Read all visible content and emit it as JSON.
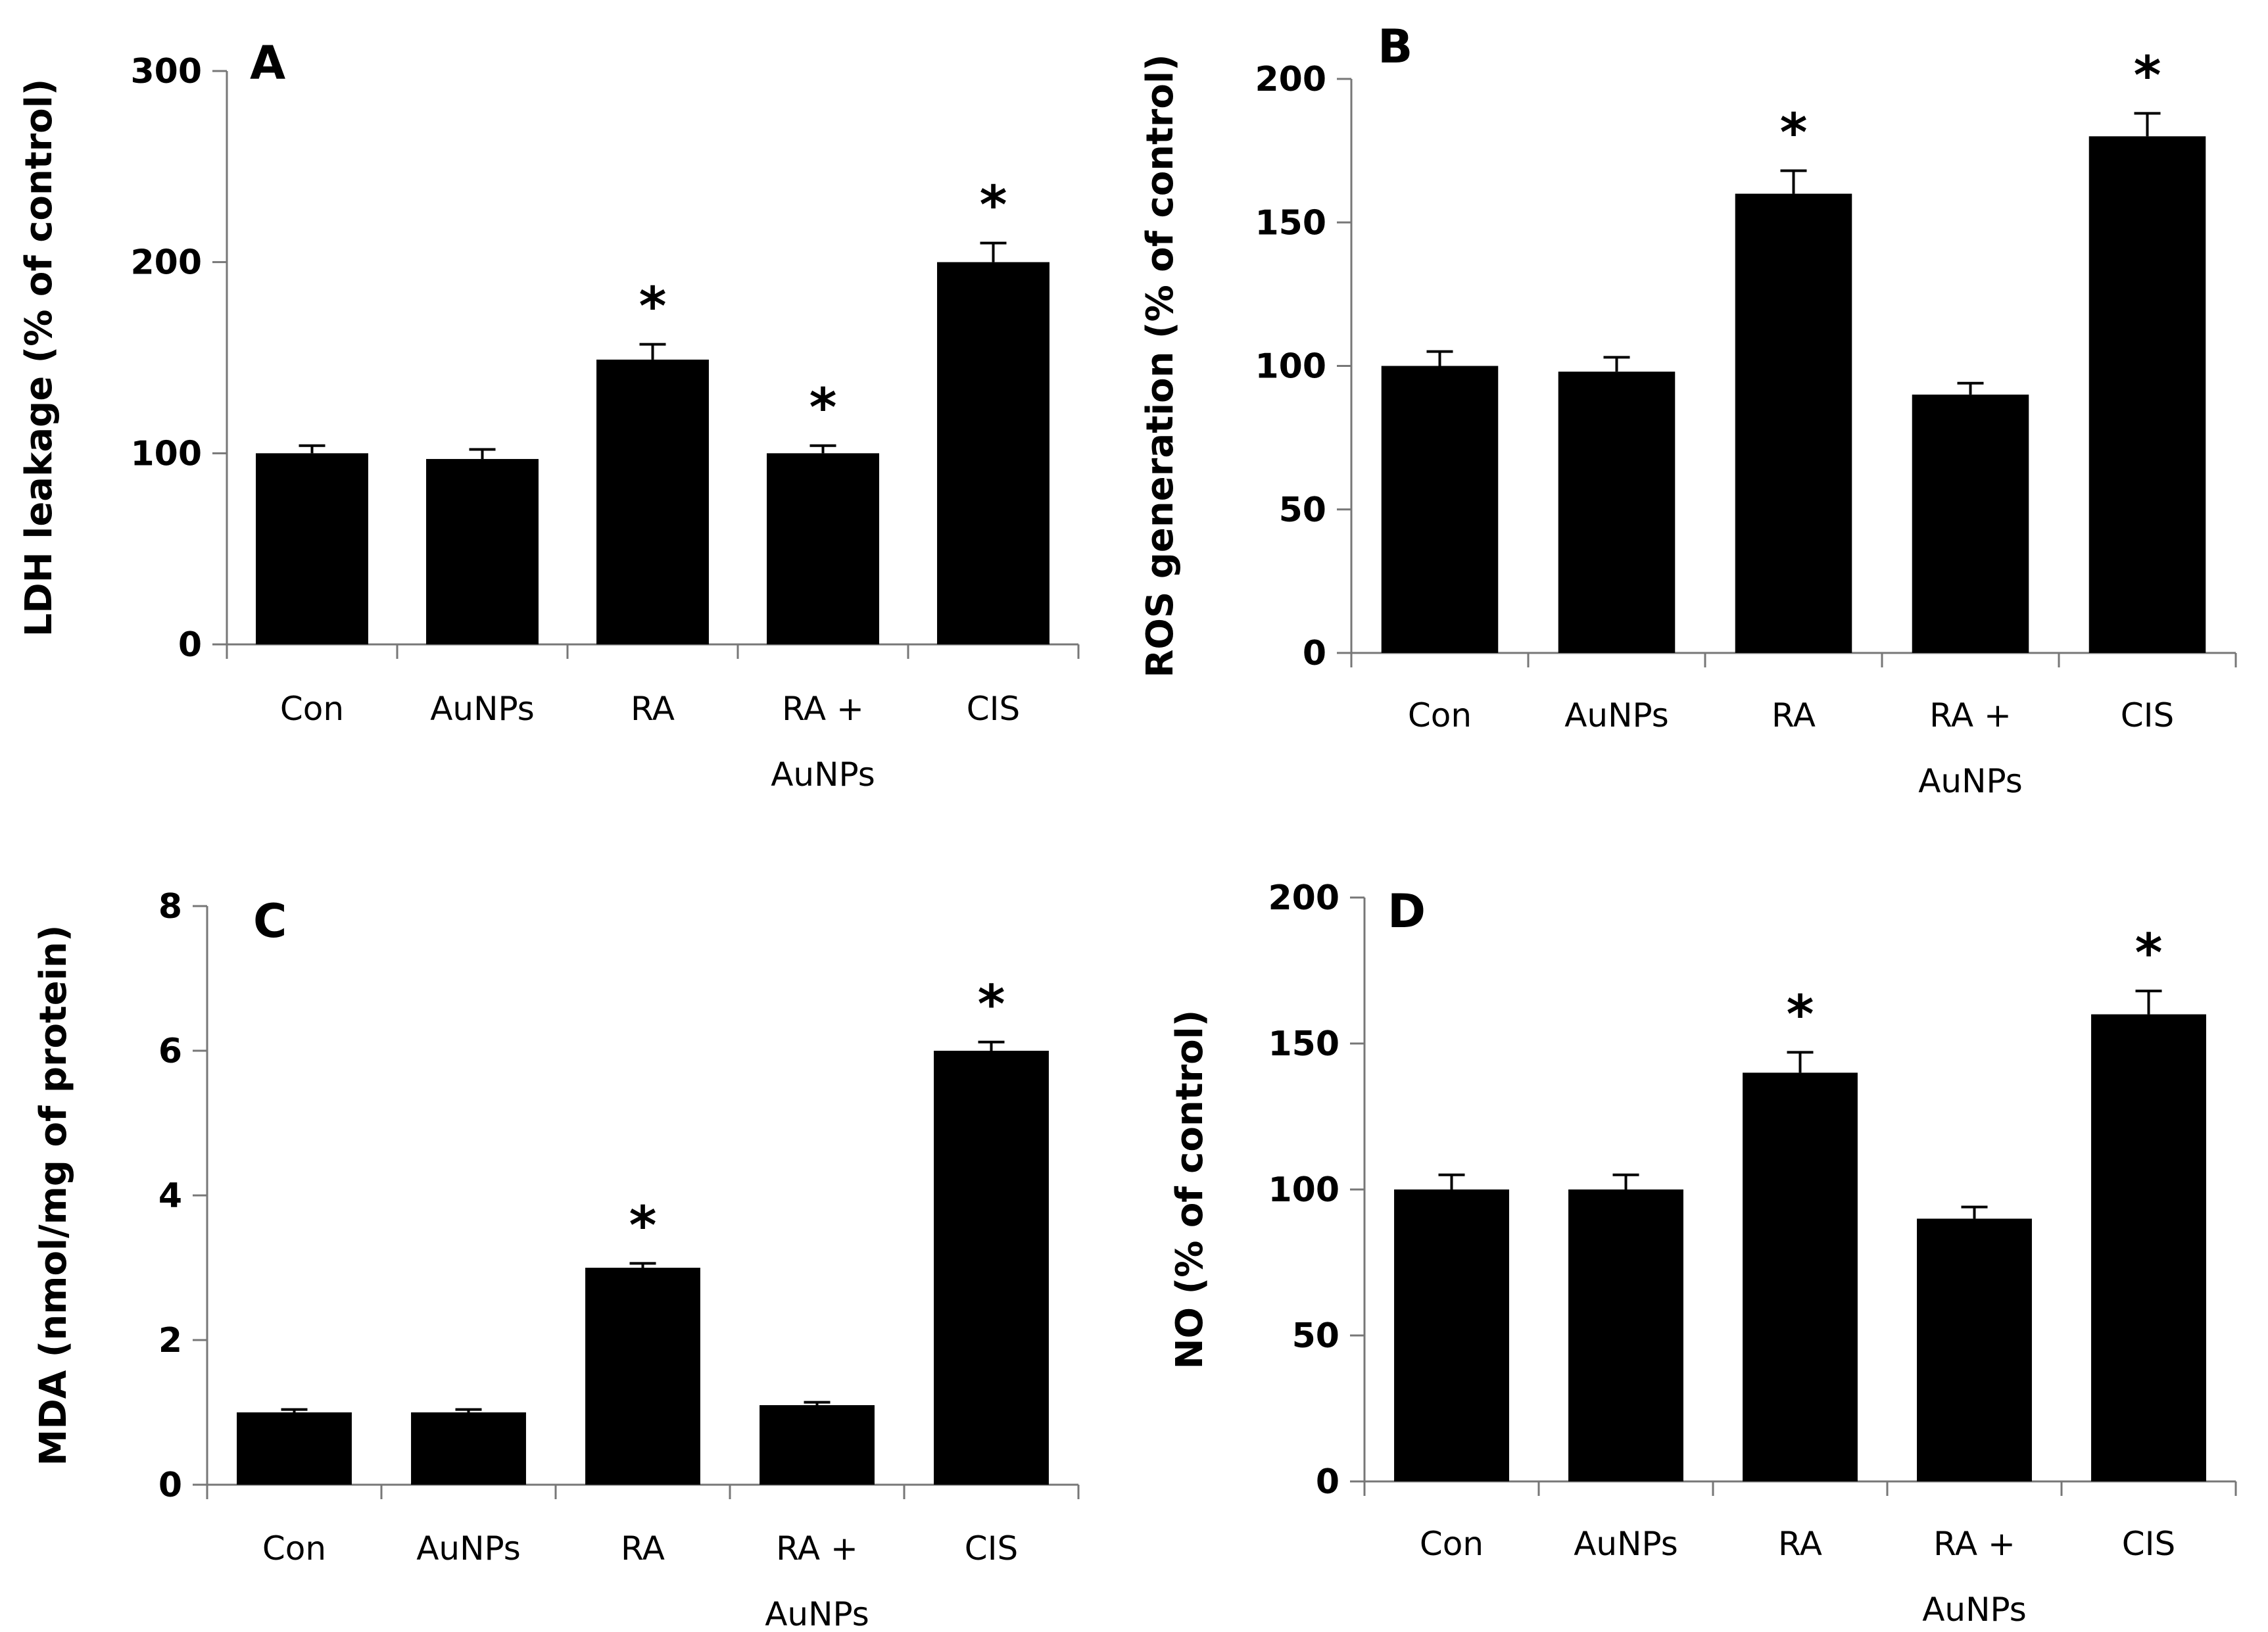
{
  "chart_data": [
    {
      "type": "bar",
      "panel": "A",
      "categories": [
        [
          "Con"
        ],
        [
          "AuNPs"
        ],
        [
          "RA"
        ],
        [
          "RA +",
          "AuNPs"
        ],
        [
          "CIS"
        ]
      ],
      "values": [
        100,
        97,
        149,
        100,
        200
      ],
      "errors": [
        4,
        5,
        8,
        4,
        10
      ],
      "significant": [
        false,
        false,
        true,
        true,
        true
      ],
      "ylabel": "LDH leakage (% of control)",
      "ylim": [
        0,
        300
      ],
      "yticks": [
        0,
        100,
        200,
        300
      ],
      "bar_color": "#000000"
    },
    {
      "type": "bar",
      "panel": "B",
      "categories": [
        [
          "Con"
        ],
        [
          "AuNPs"
        ],
        [
          "RA"
        ],
        [
          "RA +",
          "AuNPs"
        ],
        [
          "CIS"
        ]
      ],
      "values": [
        100,
        98,
        160,
        90,
        180
      ],
      "errors": [
        5,
        5,
        8,
        4,
        8
      ],
      "significant": [
        false,
        false,
        true,
        false,
        true
      ],
      "ylabel": "ROS generation (% of control)",
      "ylim": [
        0,
        200
      ],
      "yticks": [
        0,
        50,
        100,
        150,
        200
      ],
      "bar_color": "#000000"
    },
    {
      "type": "bar",
      "panel": "C",
      "categories": [
        [
          "Con"
        ],
        [
          "AuNPs"
        ],
        [
          "RA"
        ],
        [
          "RA +",
          "AuNPs"
        ],
        [
          "CIS"
        ]
      ],
      "values": [
        1.0,
        1.0,
        3.0,
        1.1,
        6.0
      ],
      "errors": [
        0.04,
        0.04,
        0.06,
        0.04,
        0.12
      ],
      "significant": [
        false,
        false,
        true,
        false,
        true
      ],
      "ylabel": "MDA (nmol/mg of protein)",
      "ylim": [
        0,
        8
      ],
      "yticks": [
        0,
        2,
        4,
        6,
        8
      ],
      "bar_color": "#000000"
    },
    {
      "type": "bar",
      "panel": "D",
      "categories": [
        [
          "Con"
        ],
        [
          "AuNPs"
        ],
        [
          "RA"
        ],
        [
          "RA +",
          "AuNPs"
        ],
        [
          "CIS"
        ]
      ],
      "values": [
        100,
        100,
        140,
        90,
        160
      ],
      "errors": [
        5,
        5,
        7,
        4,
        8
      ],
      "significant": [
        false,
        false,
        true,
        false,
        true
      ],
      "ylabel": "NO (% of control)",
      "ylim": [
        0,
        200
      ],
      "yticks": [
        0,
        50,
        100,
        150,
        200
      ],
      "bar_color": "#000000"
    }
  ],
  "significance_marker": "*"
}
